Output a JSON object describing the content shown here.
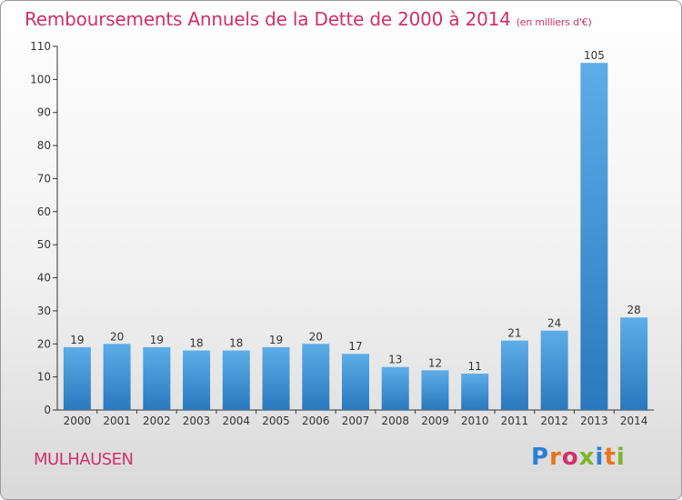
{
  "header": {
    "title": "Remboursements Annuels de la Dette de 2000 à 2014",
    "unit": "(en milliers d'€)"
  },
  "footer": {
    "commune": "MULHAUSEN"
  },
  "logo": {
    "text": "Proxiti",
    "letter_colors": [
      "#2a7fd4",
      "#e8731c",
      "#d0306a",
      "#7fb32a",
      "#2a7fd4",
      "#e8731c",
      "#7fb32a"
    ]
  },
  "colors": {
    "bar_top": "#5dade8",
    "bar_bottom": "#2a78bd",
    "accent": "#d0306a"
  },
  "chart_data": {
    "type": "bar",
    "categories": [
      "2000",
      "2001",
      "2002",
      "2003",
      "2004",
      "2005",
      "2006",
      "2007",
      "2008",
      "2009",
      "2010",
      "2011",
      "2012",
      "2013",
      "2014"
    ],
    "values": [
      19,
      20,
      19,
      18,
      18,
      19,
      20,
      17,
      13,
      12,
      11,
      21,
      24,
      105,
      28
    ],
    "ylim": [
      0,
      110
    ],
    "yticks": [
      0,
      10,
      20,
      30,
      40,
      50,
      60,
      70,
      80,
      90,
      100,
      110
    ],
    "grid": false,
    "legend": "none"
  }
}
